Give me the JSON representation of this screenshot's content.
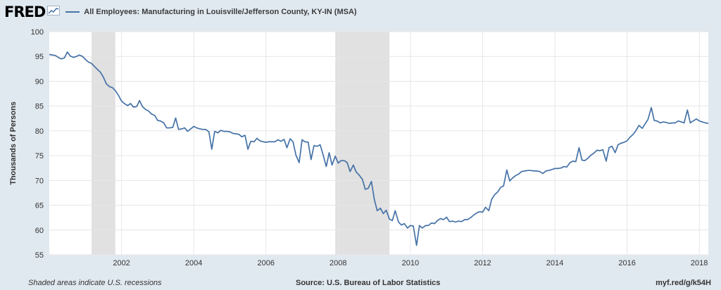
{
  "header": {
    "logo_text": "FRED",
    "logo_icon": "trend-line-icon",
    "series_title": "All Employees: Manufacturing in Louisville/Jefferson County, KY-IN (MSA)"
  },
  "footer": {
    "recession_note": "Shaded areas indicate U.S. recessions",
    "source": "Source: U.S. Bureau of Labor Statistics",
    "short_url": "myf.red/g/k54H"
  },
  "colors": {
    "line": "#4572a7",
    "recession": "#e1e1e1",
    "grid": "#e6e6e6",
    "page": "#e1e9f0"
  },
  "chart_data": {
    "type": "line",
    "title": "All Employees: Manufacturing in Louisville/Jefferson County, KY-IN (MSA)",
    "ylabel": "Thousands of Persons",
    "xlabel": "",
    "ylim": [
      55,
      100
    ],
    "xlim": [
      2000.0,
      2018.25
    ],
    "y_ticks": [
      55,
      60,
      65,
      70,
      75,
      80,
      85,
      90,
      95,
      100
    ],
    "x_ticks": [
      2002,
      2004,
      2006,
      2008,
      2010,
      2012,
      2014,
      2016,
      2018
    ],
    "grid": true,
    "recessions": [
      [
        2001.17,
        2001.83
      ],
      [
        2007.92,
        2009.42
      ]
    ],
    "series": [
      {
        "name": "All Employees: Manufacturing in Louisville/Jefferson County, KY-IN (MSA)",
        "points": [
          [
            2000.0,
            95.4
          ],
          [
            2000.08,
            95.3
          ],
          [
            2000.17,
            95.2
          ],
          [
            2000.25,
            94.8
          ],
          [
            2000.33,
            94.5
          ],
          [
            2000.42,
            94.7
          ],
          [
            2000.5,
            95.9
          ],
          [
            2000.58,
            95.1
          ],
          [
            2000.67,
            94.8
          ],
          [
            2000.75,
            95.0
          ],
          [
            2000.83,
            95.3
          ],
          [
            2000.92,
            95.0
          ],
          [
            2001.0,
            94.4
          ],
          [
            2001.08,
            93.9
          ],
          [
            2001.17,
            93.6
          ],
          [
            2001.25,
            93.0
          ],
          [
            2001.33,
            92.4
          ],
          [
            2001.42,
            91.8
          ],
          [
            2001.5,
            90.8
          ],
          [
            2001.58,
            89.5
          ],
          [
            2001.67,
            88.9
          ],
          [
            2001.75,
            88.7
          ],
          [
            2001.83,
            88.1
          ],
          [
            2001.92,
            87.1
          ],
          [
            2002.0,
            86.0
          ],
          [
            2002.08,
            85.5
          ],
          [
            2002.17,
            85.1
          ],
          [
            2002.25,
            85.5
          ],
          [
            2002.33,
            84.8
          ],
          [
            2002.42,
            84.9
          ],
          [
            2002.5,
            86.1
          ],
          [
            2002.58,
            84.9
          ],
          [
            2002.67,
            84.3
          ],
          [
            2002.75,
            84.0
          ],
          [
            2002.83,
            83.4
          ],
          [
            2002.92,
            83.1
          ],
          [
            2003.0,
            82.1
          ],
          [
            2003.08,
            82.0
          ],
          [
            2003.17,
            81.6
          ],
          [
            2003.25,
            80.6
          ],
          [
            2003.33,
            80.6
          ],
          [
            2003.42,
            80.7
          ],
          [
            2003.5,
            82.6
          ],
          [
            2003.58,
            80.3
          ],
          [
            2003.67,
            80.4
          ],
          [
            2003.75,
            80.6
          ],
          [
            2003.83,
            79.9
          ],
          [
            2003.92,
            80.4
          ],
          [
            2004.0,
            80.9
          ],
          [
            2004.08,
            80.6
          ],
          [
            2004.17,
            80.4
          ],
          [
            2004.25,
            80.3
          ],
          [
            2004.33,
            80.3
          ],
          [
            2004.42,
            79.8
          ],
          [
            2004.5,
            76.3
          ],
          [
            2004.58,
            79.9
          ],
          [
            2004.67,
            79.6
          ],
          [
            2004.75,
            80.1
          ],
          [
            2004.83,
            79.9
          ],
          [
            2004.92,
            79.9
          ],
          [
            2005.0,
            79.8
          ],
          [
            2005.08,
            79.5
          ],
          [
            2005.17,
            79.4
          ],
          [
            2005.25,
            79.3
          ],
          [
            2005.33,
            78.8
          ],
          [
            2005.42,
            79.1
          ],
          [
            2005.5,
            76.3
          ],
          [
            2005.58,
            77.9
          ],
          [
            2005.67,
            77.8
          ],
          [
            2005.75,
            78.5
          ],
          [
            2005.83,
            78.0
          ],
          [
            2005.92,
            77.8
          ],
          [
            2006.0,
            77.7
          ],
          [
            2006.08,
            77.8
          ],
          [
            2006.17,
            77.8
          ],
          [
            2006.25,
            77.8
          ],
          [
            2006.33,
            78.2
          ],
          [
            2006.42,
            77.9
          ],
          [
            2006.5,
            78.3
          ],
          [
            2006.58,
            76.6
          ],
          [
            2006.67,
            78.4
          ],
          [
            2006.75,
            77.8
          ],
          [
            2006.83,
            75.1
          ],
          [
            2006.92,
            73.6
          ],
          [
            2007.0,
            78.2
          ],
          [
            2007.08,
            77.8
          ],
          [
            2007.17,
            77.7
          ],
          [
            2007.25,
            74.2
          ],
          [
            2007.33,
            77.0
          ],
          [
            2007.42,
            76.9
          ],
          [
            2007.5,
            77.2
          ],
          [
            2007.58,
            75.2
          ],
          [
            2007.67,
            72.8
          ],
          [
            2007.75,
            75.6
          ],
          [
            2007.83,
            73.1
          ],
          [
            2007.92,
            74.9
          ],
          [
            2008.0,
            73.5
          ],
          [
            2008.08,
            74.0
          ],
          [
            2008.17,
            74.0
          ],
          [
            2008.25,
            73.6
          ],
          [
            2008.33,
            71.8
          ],
          [
            2008.42,
            73.1
          ],
          [
            2008.5,
            71.7
          ],
          [
            2008.58,
            71.1
          ],
          [
            2008.67,
            70.2
          ],
          [
            2008.75,
            68.2
          ],
          [
            2008.83,
            68.4
          ],
          [
            2008.92,
            69.8
          ],
          [
            2009.0,
            66.2
          ],
          [
            2009.08,
            63.9
          ],
          [
            2009.17,
            64.4
          ],
          [
            2009.25,
            63.3
          ],
          [
            2009.33,
            64.0
          ],
          [
            2009.42,
            62.2
          ],
          [
            2009.5,
            61.9
          ],
          [
            2009.58,
            63.9
          ],
          [
            2009.67,
            61.6
          ],
          [
            2009.75,
            61.0
          ],
          [
            2009.83,
            61.3
          ],
          [
            2009.92,
            60.4
          ],
          [
            2010.0,
            60.9
          ],
          [
            2010.08,
            60.8
          ],
          [
            2010.17,
            56.9
          ],
          [
            2010.25,
            60.9
          ],
          [
            2010.33,
            60.4
          ],
          [
            2010.42,
            60.9
          ],
          [
            2010.5,
            60.9
          ],
          [
            2010.58,
            61.4
          ],
          [
            2010.67,
            61.3
          ],
          [
            2010.75,
            61.9
          ],
          [
            2010.83,
            62.3
          ],
          [
            2010.92,
            62.1
          ],
          [
            2011.0,
            62.6
          ],
          [
            2011.08,
            61.7
          ],
          [
            2011.17,
            61.8
          ],
          [
            2011.25,
            61.6
          ],
          [
            2011.33,
            61.8
          ],
          [
            2011.42,
            61.7
          ],
          [
            2011.5,
            62.1
          ],
          [
            2011.58,
            62.1
          ],
          [
            2011.67,
            62.5
          ],
          [
            2011.75,
            63.0
          ],
          [
            2011.83,
            63.4
          ],
          [
            2011.92,
            63.7
          ],
          [
            2012.0,
            63.6
          ],
          [
            2012.08,
            64.6
          ],
          [
            2012.17,
            63.9
          ],
          [
            2012.25,
            66.2
          ],
          [
            2012.33,
            67.1
          ],
          [
            2012.42,
            67.7
          ],
          [
            2012.5,
            68.6
          ],
          [
            2012.58,
            68.9
          ],
          [
            2012.67,
            72.1
          ],
          [
            2012.75,
            69.9
          ],
          [
            2012.83,
            70.5
          ],
          [
            2012.92,
            71.0
          ],
          [
            2013.0,
            71.3
          ],
          [
            2013.08,
            71.8
          ],
          [
            2013.17,
            71.9
          ],
          [
            2013.25,
            72.0
          ],
          [
            2013.33,
            72.0
          ],
          [
            2013.42,
            71.9
          ],
          [
            2013.5,
            71.9
          ],
          [
            2013.58,
            71.8
          ],
          [
            2013.67,
            71.4
          ],
          [
            2013.75,
            71.9
          ],
          [
            2013.83,
            72.0
          ],
          [
            2013.92,
            72.2
          ],
          [
            2014.0,
            72.4
          ],
          [
            2014.08,
            72.4
          ],
          [
            2014.17,
            72.5
          ],
          [
            2014.25,
            72.8
          ],
          [
            2014.33,
            72.7
          ],
          [
            2014.42,
            73.6
          ],
          [
            2014.5,
            73.9
          ],
          [
            2014.58,
            73.8
          ],
          [
            2014.67,
            76.6
          ],
          [
            2014.75,
            74.1
          ],
          [
            2014.83,
            74.0
          ],
          [
            2014.92,
            74.5
          ],
          [
            2015.0,
            75.1
          ],
          [
            2015.08,
            75.5
          ],
          [
            2015.17,
            76.1
          ],
          [
            2015.25,
            76.0
          ],
          [
            2015.33,
            76.2
          ],
          [
            2015.42,
            73.9
          ],
          [
            2015.5,
            76.6
          ],
          [
            2015.58,
            76.9
          ],
          [
            2015.67,
            75.6
          ],
          [
            2015.75,
            77.2
          ],
          [
            2015.83,
            77.5
          ],
          [
            2015.92,
            77.7
          ],
          [
            2016.0,
            78.0
          ],
          [
            2016.08,
            78.7
          ],
          [
            2016.17,
            79.3
          ],
          [
            2016.25,
            80.1
          ],
          [
            2016.33,
            81.1
          ],
          [
            2016.42,
            80.5
          ],
          [
            2016.5,
            81.4
          ],
          [
            2016.58,
            82.3
          ],
          [
            2016.67,
            84.7
          ],
          [
            2016.75,
            82.1
          ],
          [
            2016.83,
            82.0
          ],
          [
            2016.92,
            81.6
          ],
          [
            2017.0,
            81.8
          ],
          [
            2017.08,
            81.7
          ],
          [
            2017.17,
            81.5
          ],
          [
            2017.25,
            81.6
          ],
          [
            2017.33,
            81.6
          ],
          [
            2017.42,
            82.0
          ],
          [
            2017.5,
            81.8
          ],
          [
            2017.58,
            81.6
          ],
          [
            2017.67,
            84.2
          ],
          [
            2017.75,
            81.6
          ],
          [
            2017.83,
            82.0
          ],
          [
            2017.92,
            82.4
          ],
          [
            2018.0,
            82.0
          ],
          [
            2018.08,
            81.8
          ],
          [
            2018.17,
            81.6
          ],
          [
            2018.25,
            81.5
          ]
        ]
      }
    ]
  }
}
